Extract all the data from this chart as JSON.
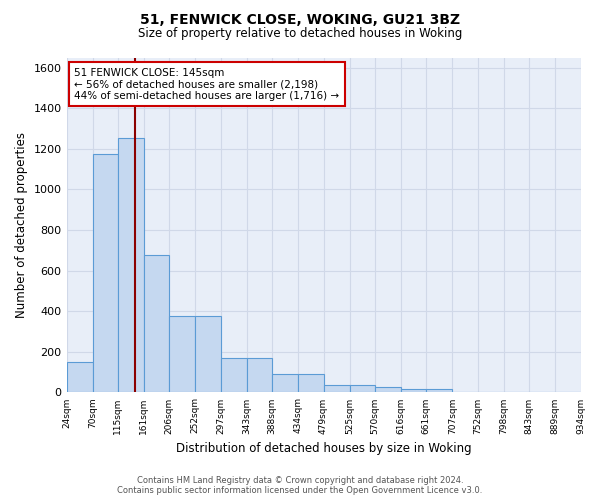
{
  "title1": "51, FENWICK CLOSE, WOKING, GU21 3BZ",
  "title2": "Size of property relative to detached houses in Woking",
  "xlabel": "Distribution of detached houses by size in Woking",
  "ylabel": "Number of detached properties",
  "property_label": "51 FENWICK CLOSE: 145sqm",
  "annotation_line1": "← 56% of detached houses are smaller (2,198)",
  "annotation_line2": "44% of semi-detached houses are larger (1,716) →",
  "bin_edges": [
    24,
    70,
    115,
    161,
    206,
    252,
    297,
    343,
    388,
    434,
    479,
    525,
    570,
    616,
    661,
    707,
    752,
    798,
    843,
    889,
    934
  ],
  "bar_heights": [
    150,
    1175,
    1255,
    675,
    375,
    375,
    170,
    170,
    90,
    90,
    35,
    35,
    25,
    18,
    18,
    0,
    0,
    0,
    0,
    0
  ],
  "bar_color": "#c5d8f0",
  "bar_edge_color": "#5b9bd5",
  "red_line_color": "#8b0000",
  "annotation_box_edge_color": "#cc0000",
  "background_color": "#e8eef8",
  "grid_color": "#d0d8e8",
  "ylim": [
    0,
    1650
  ],
  "yticks": [
    0,
    200,
    400,
    600,
    800,
    1000,
    1200,
    1400,
    1600
  ],
  "red_line_x": 145,
  "footer_line1": "Contains HM Land Registry data © Crown copyright and database right 2024.",
  "footer_line2": "Contains public sector information licensed under the Open Government Licence v3.0."
}
